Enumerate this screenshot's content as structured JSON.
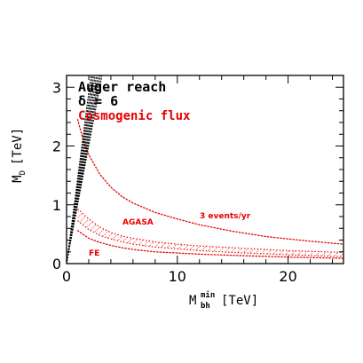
{
  "chart_data": {
    "type": "line",
    "xlabel": {
      "base": "M",
      "sup": "min",
      "sub": "bh",
      "unit": "[TeV]"
    },
    "ylabel": {
      "base": "M",
      "sub": "D",
      "unit": "[TeV]"
    },
    "xlim": [
      0,
      25
    ],
    "ylim": [
      0,
      3.2
    ],
    "xticks": [
      0,
      10,
      20
    ],
    "yticks": [
      0,
      1,
      2,
      3
    ],
    "grid": false,
    "series": [
      {
        "name": "3 events/yr",
        "color": "#e60000",
        "style": "dotted",
        "x": [
          1,
          1.5,
          2,
          3,
          4,
          5,
          6,
          8,
          10,
          12,
          15,
          18,
          20,
          22,
          25
        ],
        "y": [
          2.45,
          2.1,
          1.85,
          1.52,
          1.3,
          1.14,
          1.03,
          0.87,
          0.76,
          0.66,
          0.55,
          0.46,
          0.42,
          0.38,
          0.33
        ]
      },
      {
        "name": "AGASA",
        "color": "#e60000",
        "style": "hatched-band",
        "x": [
          1,
          2,
          3,
          4,
          5,
          6,
          8,
          10,
          12,
          15,
          20,
          25
        ],
        "y_upper": [
          0.93,
          0.76,
          0.62,
          0.53,
          0.47,
          0.43,
          0.37,
          0.33,
          0.3,
          0.27,
          0.22,
          0.19
        ],
        "y_lower": [
          0.73,
          0.58,
          0.48,
          0.42,
          0.37,
          0.33,
          0.28,
          0.25,
          0.22,
          0.19,
          0.15,
          0.12
        ]
      },
      {
        "name": "FE",
        "color": "#e60000",
        "style": "dotted",
        "x": [
          1,
          2,
          3,
          4,
          5,
          6,
          8,
          10,
          12,
          15,
          20,
          25
        ],
        "y": [
          0.56,
          0.43,
          0.36,
          0.31,
          0.27,
          0.24,
          0.2,
          0.18,
          0.16,
          0.14,
          0.11,
          0.09
        ]
      },
      {
        "name": "Auger reach",
        "color": "#000000",
        "style": "dotted-wedge",
        "x_left": [
          0,
          2.2
        ],
        "x_right": [
          0,
          3.2
        ],
        "y": [
          0,
          3.2
        ]
      }
    ],
    "annotations": {
      "auger": "Auger reach",
      "delta": "δ = 6",
      "cosmogenic": "Cosmogenic flux",
      "events": "3 events/yr",
      "agasa": "AGASA",
      "fe": "FE"
    }
  }
}
